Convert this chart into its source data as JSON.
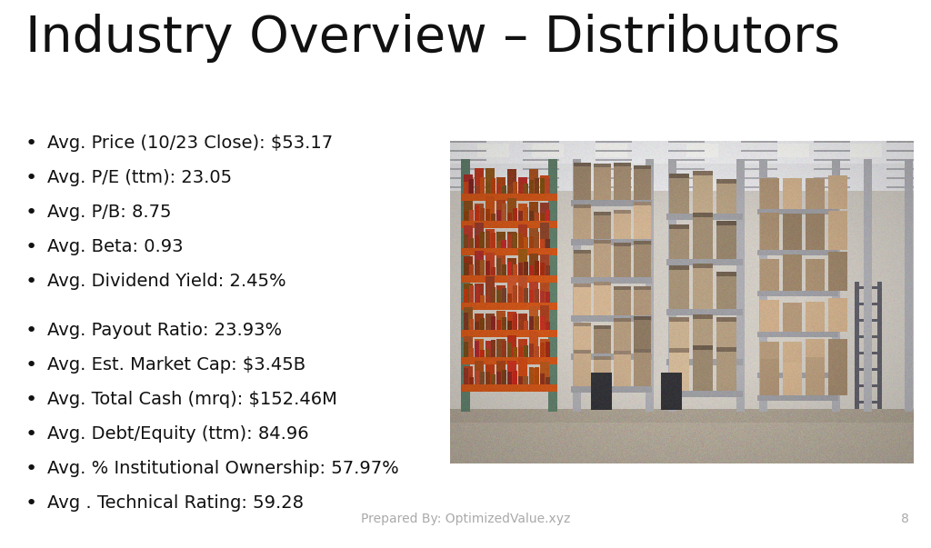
{
  "title": "Industry Overview – Distributors",
  "title_fontsize": 40,
  "title_color": "#111111",
  "background_color": "#ffffff",
  "bullet_items": [
    "Avg. Price (10/23 Close): $53.17",
    "Avg. P/E (ttm): 23.05",
    "Avg. P/B: 8.75",
    "Avg. Beta: 0.93",
    "Avg. Dividend Yield: 2.45%",
    "",
    "Avg. Payout Ratio: 23.93%",
    "Avg. Est. Market Cap: $3.45B",
    "Avg. Total Cash (mrq): $152.46M",
    "Avg. Debt/Equity (ttm): 84.96",
    "Avg. % Institutional Ownership: 57.97%",
    "Avg . Technical Rating: 59.28"
  ],
  "bullet_fontsize": 14,
  "bullet_color": "#111111",
  "footer_text": "Prepared By: OptimizedValue.xyz",
  "footer_fontsize": 10,
  "footer_color": "#aaaaaa",
  "page_number": "8",
  "page_number_color": "#aaaaaa",
  "page_number_fontsize": 10
}
